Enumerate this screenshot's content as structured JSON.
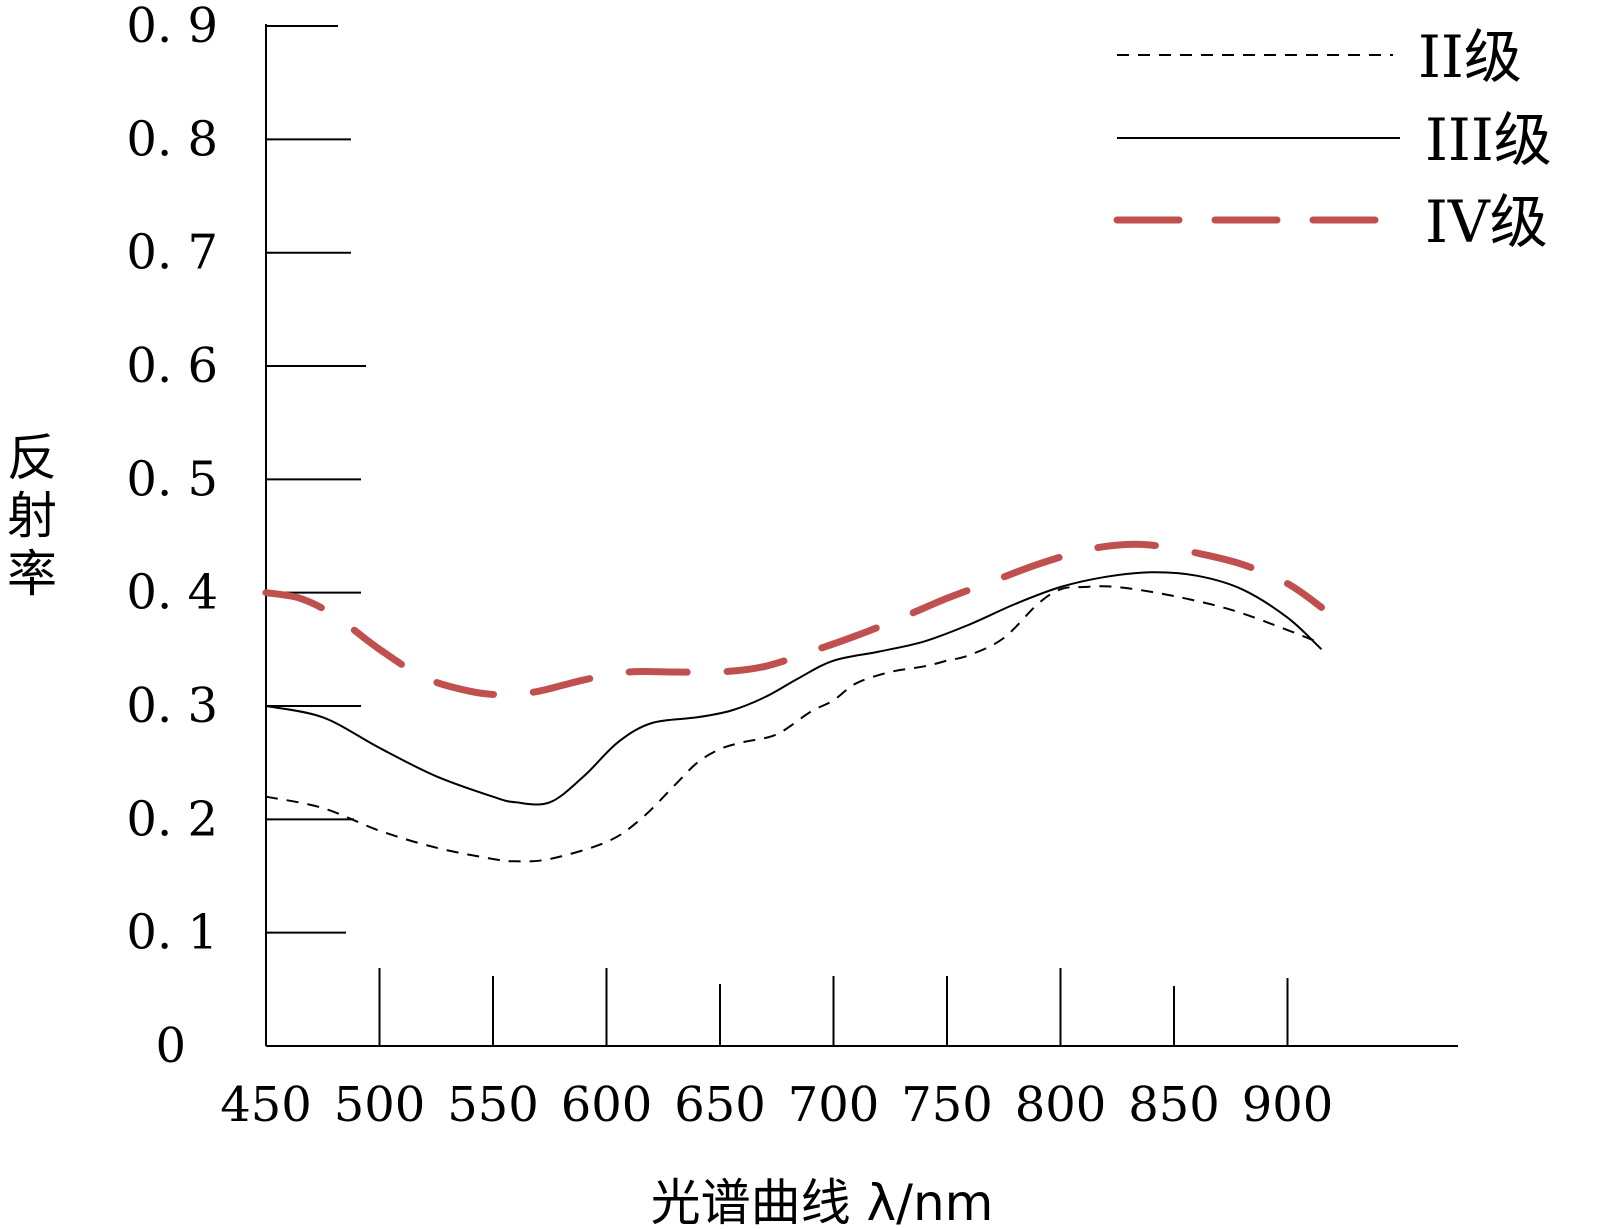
{
  "chart_data": {
    "type": "line",
    "title": "",
    "xlabel": "光谱曲线 λ/nm",
    "ylabel": "反射率",
    "xlim": [
      450,
      950
    ],
    "ylim": [
      0,
      0.9
    ],
    "x_ticks": [
      450,
      500,
      550,
      600,
      650,
      700,
      750,
      800,
      850,
      900
    ],
    "y_ticks": [
      0,
      0.1,
      0.2,
      0.3,
      0.4,
      0.5,
      0.6,
      0.7,
      0.8,
      0.9
    ],
    "x_tick_labels": [
      "450",
      "500",
      "550",
      "600",
      "650",
      "700",
      "750",
      "800",
      "850",
      "900"
    ],
    "y_tick_labels": [
      "0",
      "0. 1",
      "0. 2",
      "0. 3",
      "0. 4",
      "0. 5",
      "0. 6",
      "0. 7",
      "0. 8",
      "0. 9"
    ],
    "grid": false,
    "legend_position": "top-right",
    "series": [
      {
        "name": "II级",
        "color": "#000000",
        "style": "short-dash",
        "x": [
          450,
          475,
          500,
          525,
          550,
          560,
          575,
          600,
          615,
          630,
          640,
          650,
          660,
          675,
          690,
          700,
          710,
          725,
          740,
          750,
          760,
          775,
          790,
          800,
          810,
          825,
          850,
          875,
          900,
          915
        ],
        "y": [
          0.22,
          0.21,
          0.19,
          0.175,
          0.165,
          0.163,
          0.165,
          0.18,
          0.2,
          0.23,
          0.25,
          0.262,
          0.268,
          0.275,
          0.295,
          0.305,
          0.32,
          0.33,
          0.335,
          0.34,
          0.345,
          0.36,
          0.39,
          0.403,
          0.405,
          0.405,
          0.397,
          0.385,
          0.367,
          0.355
        ]
      },
      {
        "name": "III级",
        "color": "#000000",
        "style": "solid",
        "x": [
          450,
          475,
          500,
          525,
          550,
          560,
          575,
          590,
          605,
          620,
          640,
          655,
          670,
          685,
          700,
          720,
          740,
          760,
          780,
          800,
          820,
          840,
          860,
          880,
          900,
          915
        ],
        "y": [
          0.3,
          0.29,
          0.263,
          0.238,
          0.22,
          0.215,
          0.215,
          0.238,
          0.268,
          0.285,
          0.29,
          0.296,
          0.308,
          0.325,
          0.34,
          0.348,
          0.357,
          0.372,
          0.39,
          0.405,
          0.414,
          0.418,
          0.415,
          0.403,
          0.378,
          0.35
        ]
      },
      {
        "name": "IV级",
        "color": "#c0504d",
        "style": "long-dash",
        "x": [
          450,
          465,
          480,
          500,
          520,
          540,
          555,
          570,
          590,
          610,
          630,
          650,
          670,
          690,
          710,
          730,
          750,
          770,
          790,
          810,
          825,
          840,
          860,
          880,
          900,
          915
        ],
        "y": [
          0.4,
          0.395,
          0.38,
          0.35,
          0.325,
          0.313,
          0.31,
          0.313,
          0.323,
          0.33,
          0.33,
          0.33,
          0.335,
          0.348,
          0.362,
          0.378,
          0.395,
          0.41,
          0.425,
          0.437,
          0.442,
          0.442,
          0.435,
          0.425,
          0.408,
          0.387
        ]
      }
    ]
  }
}
